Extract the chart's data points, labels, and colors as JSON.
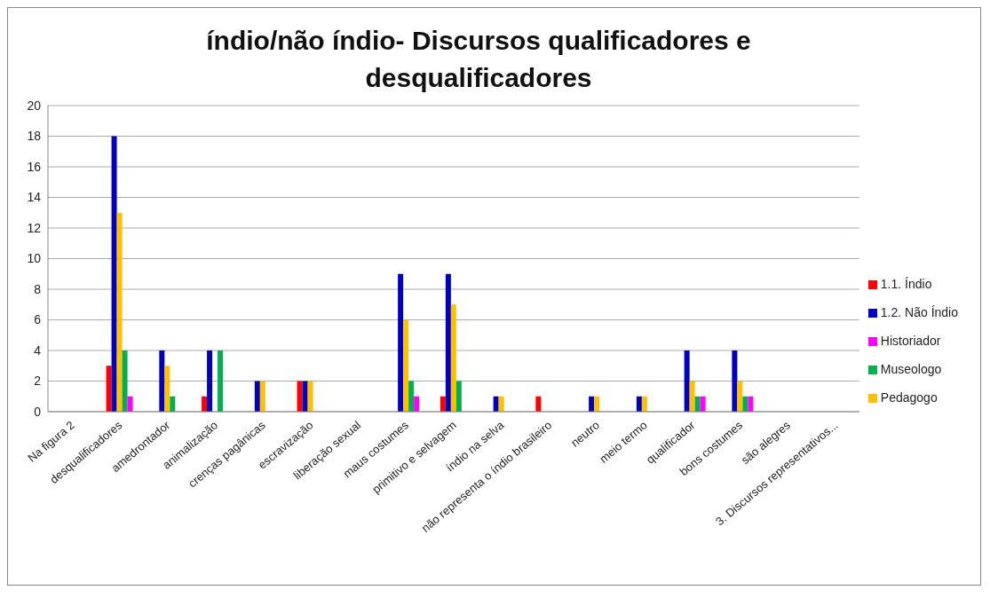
{
  "chart_data": {
    "type": "bar",
    "title": "índio/não índio- Discursos qualificadores e desqualificadores",
    "categories": [
      "Na figura 2",
      "desqualificadores",
      "amedrontador",
      "animalização",
      "crenças pagânicas",
      "escravização",
      "liberação sexual",
      "maus costumes",
      "primitivo e selvagem",
      "índio na selva",
      "não representa o índio brasileiro",
      "neutro",
      "meio termo",
      "qualificador",
      "bons costumes",
      "são alegres",
      "3. Discursos representativos..."
    ],
    "series": [
      {
        "name": "1.1. Índio",
        "color": "#ff0000",
        "values": [
          null,
          3,
          null,
          1,
          null,
          2,
          null,
          null,
          1,
          null,
          1,
          null,
          null,
          null,
          null,
          null,
          null
        ]
      },
      {
        "name": "1.2. Não Índio",
        "color": "#0000c0",
        "values": [
          null,
          18,
          4,
          4,
          2,
          2,
          null,
          9,
          9,
          1,
          null,
          1,
          1,
          4,
          4,
          null,
          null
        ]
      },
      {
        "name": "Pedagogo",
        "color": "#ffc000",
        "values": [
          null,
          13,
          3,
          null,
          2,
          2,
          null,
          6,
          7,
          1,
          null,
          1,
          1,
          2,
          2,
          null,
          null
        ]
      },
      {
        "name": "Museologo",
        "color": "#00b050",
        "values": [
          null,
          4,
          1,
          4,
          null,
          null,
          null,
          2,
          2,
          null,
          null,
          null,
          null,
          1,
          1,
          null,
          null
        ]
      },
      {
        "name": "Historiador",
        "color": "#ff00ff",
        "values": [
          null,
          1,
          null,
          null,
          null,
          null,
          null,
          1,
          null,
          null,
          null,
          null,
          null,
          1,
          1,
          null,
          null
        ]
      }
    ],
    "ylim": [
      0,
      20
    ],
    "yticks": [
      0,
      2,
      4,
      6,
      8,
      10,
      12,
      14,
      16,
      18,
      20
    ],
    "grid": "y",
    "legend": "right"
  }
}
